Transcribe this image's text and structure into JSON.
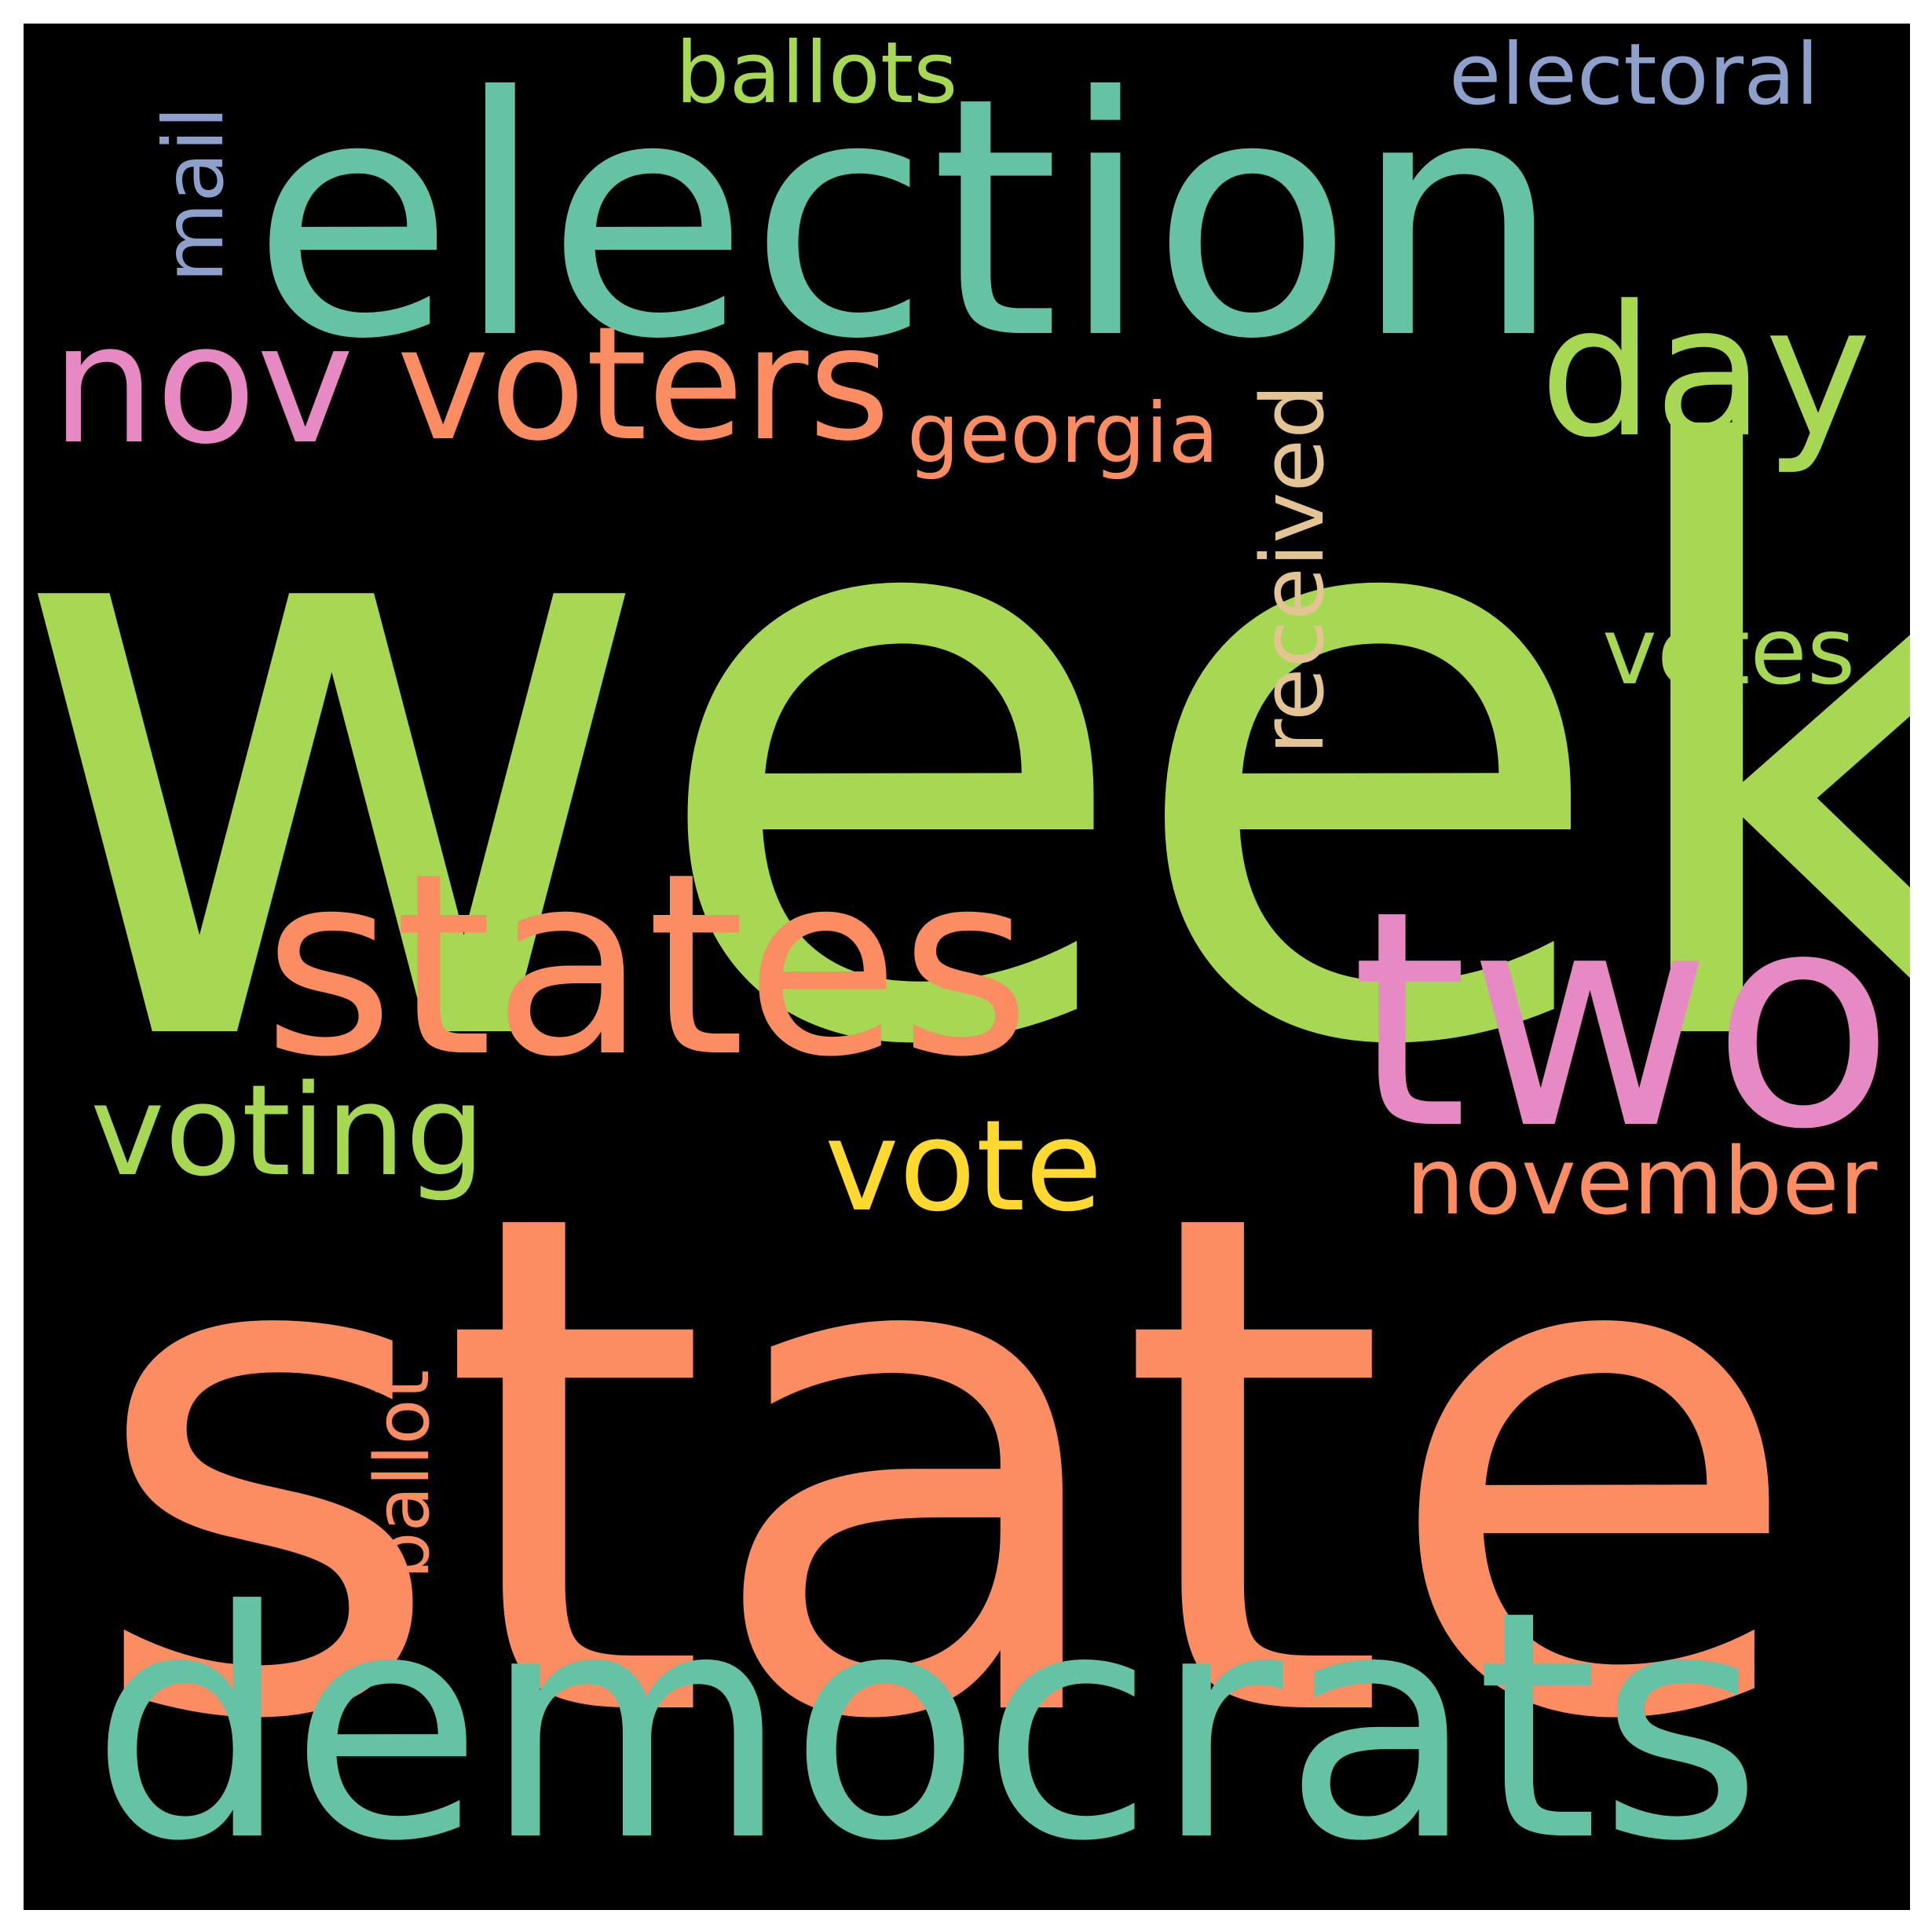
{
  "background": "#000000",
  "words": [
    {
      "text": "week",
      "color": "#a6d854"
    },
    {
      "text": "state",
      "color": "#fc8d62"
    },
    {
      "text": "election",
      "color": "#66c2a5"
    },
    {
      "text": "democrats",
      "color": "#66c2a5"
    },
    {
      "text": "states",
      "color": "#fc8d62"
    },
    {
      "text": "two",
      "color": "#e78ac3"
    },
    {
      "text": "voters",
      "color": "#fc8d62"
    },
    {
      "text": "nov",
      "color": "#e78ac3"
    },
    {
      "text": "day",
      "color": "#a6d854"
    },
    {
      "text": "voting",
      "color": "#a6d854"
    },
    {
      "text": "vote",
      "color": "#ffd92f"
    },
    {
      "text": "november",
      "color": "#fc8d62"
    },
    {
      "text": "votes",
      "color": "#a6d854"
    },
    {
      "text": "received",
      "color": "#e5c494"
    },
    {
      "text": "georgia",
      "color": "#fc8d62"
    },
    {
      "text": "ballots",
      "color": "#a6d854"
    },
    {
      "text": "electoral",
      "color": "#8da0cb"
    },
    {
      "text": "mail",
      "color": "#8da0cb"
    },
    {
      "text": "ballot",
      "color": "#fc8d62"
    }
  ]
}
